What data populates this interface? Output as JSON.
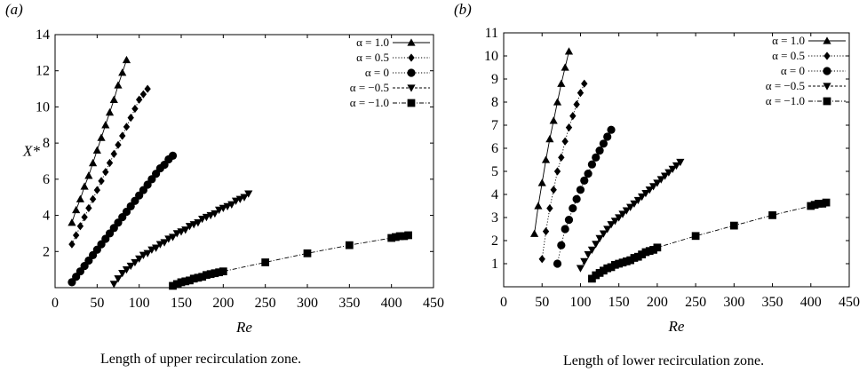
{
  "chart_data": [
    {
      "type": "line",
      "panel_label": "(a)",
      "title": "",
      "xlabel": "Re",
      "ylabel": "X*",
      "caption": "Length of upper recirculation zone.",
      "xlim": [
        0,
        450
      ],
      "ylim": [
        0,
        14
      ],
      "xticks": [
        "0",
        "50",
        "100",
        "150",
        "200",
        "250",
        "300",
        "350",
        "400",
        "450"
      ],
      "yticks": [
        "2",
        "4",
        "6",
        "8",
        "10",
        "12",
        "14"
      ],
      "grid": false,
      "legend_position": "top-right",
      "series": [
        {
          "name": "α = 1.0",
          "marker": "triangle-up",
          "dash": "solid",
          "x": [
            20,
            25,
            30,
            35,
            40,
            45,
            50,
            55,
            60,
            65,
            70,
            75,
            80,
            85
          ],
          "y": [
            3.6,
            4.3,
            4.9,
            5.6,
            6.2,
            6.9,
            7.6,
            8.3,
            9.0,
            9.7,
            10.4,
            11.2,
            11.9,
            12.6
          ]
        },
        {
          "name": "α = 0.5",
          "marker": "diamond",
          "dash": "dotted",
          "x": [
            20,
            25,
            30,
            35,
            40,
            45,
            50,
            55,
            60,
            65,
            70,
            75,
            80,
            85,
            90,
            95,
            100,
            105,
            110
          ],
          "y": [
            2.4,
            2.9,
            3.4,
            3.9,
            4.4,
            4.9,
            5.4,
            5.9,
            6.4,
            6.9,
            7.4,
            7.9,
            8.4,
            8.9,
            9.4,
            9.9,
            10.4,
            10.7,
            11.0
          ]
        },
        {
          "name": "α = 0",
          "marker": "circle",
          "dash": "dotted",
          "x": [
            20,
            25,
            30,
            35,
            40,
            45,
            50,
            55,
            60,
            65,
            70,
            75,
            80,
            85,
            90,
            95,
            100,
            105,
            110,
            115,
            120,
            125,
            130,
            135,
            140
          ],
          "y": [
            0.3,
            0.6,
            0.9,
            1.2,
            1.5,
            1.8,
            2.1,
            2.4,
            2.7,
            3.0,
            3.3,
            3.6,
            3.9,
            4.2,
            4.5,
            4.8,
            5.1,
            5.4,
            5.7,
            6.0,
            6.3,
            6.6,
            6.8,
            7.1,
            7.3
          ]
        },
        {
          "name": "α = −0.5",
          "marker": "triangle-down",
          "dash": "dashed",
          "x": [
            70,
            75,
            80,
            85,
            90,
            95,
            100,
            105,
            110,
            115,
            120,
            125,
            130,
            135,
            140,
            145,
            150,
            155,
            160,
            165,
            170,
            175,
            180,
            185,
            190,
            195,
            200,
            205,
            210,
            215,
            220,
            225,
            230
          ],
          "y": [
            0.2,
            0.5,
            0.8,
            1.0,
            1.2,
            1.4,
            1.6,
            1.8,
            1.9,
            2.1,
            2.2,
            2.4,
            2.5,
            2.7,
            2.8,
            3.0,
            3.1,
            3.2,
            3.4,
            3.5,
            3.6,
            3.8,
            3.9,
            4.0,
            4.1,
            4.3,
            4.4,
            4.5,
            4.6,
            4.8,
            4.9,
            5.0,
            5.2
          ]
        },
        {
          "name": "α = −1.0",
          "marker": "square",
          "dash": "dashdot",
          "x": [
            140,
            145,
            150,
            155,
            160,
            165,
            170,
            175,
            180,
            185,
            190,
            195,
            200,
            250,
            300,
            350,
            400,
            405,
            410,
            415,
            420
          ],
          "y": [
            0.1,
            0.2,
            0.3,
            0.35,
            0.4,
            0.5,
            0.55,
            0.6,
            0.7,
            0.75,
            0.8,
            0.85,
            0.9,
            1.4,
            1.9,
            2.35,
            2.75,
            2.8,
            2.85,
            2.85,
            2.9
          ]
        }
      ]
    },
    {
      "type": "line",
      "panel_label": "(b)",
      "title": "",
      "xlabel": "Re",
      "ylabel": "",
      "caption": "Length of lower recirculation zone.",
      "xlim": [
        0,
        450
      ],
      "ylim": [
        0,
        11
      ],
      "xticks": [
        "0",
        "50",
        "100",
        "150",
        "200",
        "250",
        "300",
        "350",
        "400",
        "450"
      ],
      "yticks": [
        "1",
        "2",
        "3",
        "4",
        "5",
        "6",
        "7",
        "8",
        "9",
        "10",
        "11"
      ],
      "grid": false,
      "legend_position": "top-right",
      "series": [
        {
          "name": "α = 1.0",
          "marker": "triangle-up",
          "dash": "solid",
          "x": [
            40,
            45,
            50,
            55,
            60,
            65,
            70,
            75,
            80,
            85
          ],
          "y": [
            2.3,
            3.5,
            4.5,
            5.5,
            6.4,
            7.2,
            8.0,
            8.8,
            9.5,
            10.2
          ]
        },
        {
          "name": "α = 0.5",
          "marker": "diamond",
          "dash": "dotted",
          "x": [
            50,
            55,
            60,
            65,
            70,
            75,
            80,
            85,
            90,
            95,
            100,
            105
          ],
          "y": [
            1.2,
            2.4,
            3.4,
            4.2,
            5.0,
            5.6,
            6.3,
            6.9,
            7.4,
            7.9,
            8.4,
            8.8
          ]
        },
        {
          "name": "α = 0",
          "marker": "circle",
          "dash": "dotted",
          "x": [
            70,
            75,
            80,
            85,
            90,
            95,
            100,
            105,
            110,
            115,
            120,
            125,
            130,
            135,
            140
          ],
          "y": [
            1.0,
            1.8,
            2.5,
            2.9,
            3.4,
            3.8,
            4.2,
            4.6,
            4.9,
            5.3,
            5.6,
            5.9,
            6.2,
            6.5,
            6.8
          ]
        },
        {
          "name": "α = −0.5",
          "marker": "triangle-down",
          "dash": "dashed",
          "x": [
            100,
            105,
            110,
            115,
            120,
            125,
            130,
            135,
            140,
            145,
            150,
            155,
            160,
            165,
            170,
            175,
            180,
            185,
            190,
            195,
            200,
            205,
            210,
            215,
            220,
            225,
            230
          ],
          "y": [
            0.8,
            1.1,
            1.4,
            1.6,
            1.85,
            2.1,
            2.3,
            2.5,
            2.7,
            2.85,
            3.0,
            3.15,
            3.3,
            3.45,
            3.6,
            3.75,
            3.9,
            4.05,
            4.2,
            4.35,
            4.5,
            4.65,
            4.8,
            4.95,
            5.1,
            5.25,
            5.4
          ]
        },
        {
          "name": "α = −1.0",
          "marker": "square",
          "dash": "dashdot",
          "x": [
            115,
            120,
            125,
            130,
            135,
            140,
            145,
            150,
            155,
            160,
            165,
            170,
            175,
            180,
            185,
            190,
            195,
            200,
            250,
            300,
            350,
            400,
            405,
            410,
            415,
            420
          ],
          "y": [
            0.35,
            0.5,
            0.6,
            0.7,
            0.8,
            0.85,
            0.95,
            1.0,
            1.05,
            1.1,
            1.15,
            1.25,
            1.3,
            1.4,
            1.5,
            1.55,
            1.6,
            1.7,
            2.2,
            2.65,
            3.1,
            3.5,
            3.55,
            3.6,
            3.6,
            3.65
          ]
        }
      ]
    }
  ]
}
